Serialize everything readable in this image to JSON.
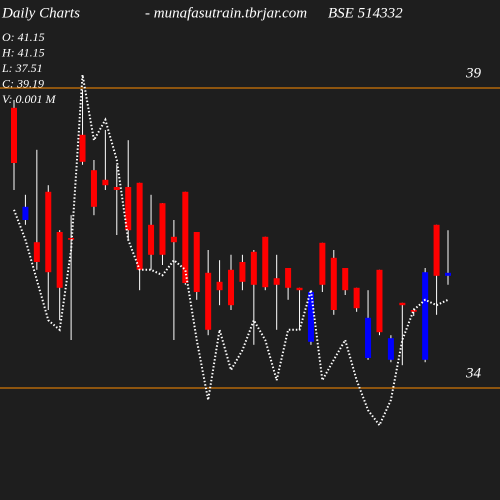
{
  "chart_data": {
    "type": "candlestick",
    "title": "Daily Charts",
    "subtitle": "- munafasutrain.tbrjar.com",
    "symbol": "BSE 514332",
    "info": [
      "O: 41.15",
      "H: 41.15",
      "L: 37.51",
      "C: 39.19",
      "V: 0.001 M"
    ],
    "ylim": [
      33,
      40
    ],
    "yticks": [
      39,
      34
    ],
    "tick_line_color": "#ff8c00",
    "up_color": "#0000ff",
    "down_color": "#ff0000",
    "wick_color": "#ffffff",
    "open": [
      38.67,
      36.8,
      36.43,
      37.27,
      36.6,
      36.5,
      38.22,
      37.63,
      37.47,
      37.35,
      37.35,
      37.42,
      36.72,
      37.08,
      36.52,
      37.27,
      36.6,
      35.92,
      35.77,
      35.97,
      36.1,
      36.27,
      36.52,
      35.83,
      36.0,
      35.67,
      34.77,
      36.42,
      36.17,
      36.0,
      35.67,
      34.5,
      35.97,
      34.47,
      35.42,
      35.3,
      34.47,
      36.72,
      35.87
    ],
    "high": [
      38.8,
      37.22,
      37.97,
      37.38,
      36.63,
      36.88,
      38.97,
      37.8,
      38.3,
      37.72,
      38.13,
      37.42,
      37.22,
      37.08,
      36.8,
      37.27,
      36.6,
      36.3,
      36.13,
      36.22,
      36.22,
      36.3,
      36.52,
      36.22,
      36.0,
      35.67,
      35.63,
      36.42,
      36.3,
      36.0,
      35.67,
      35.63,
      35.97,
      34.88,
      35.42,
      35.33,
      36.0,
      36.72,
      36.63
    ],
    "low": [
      37.3,
      36.72,
      35.97,
      35.3,
      35.13,
      34.8,
      37.72,
      36.88,
      37.3,
      36.55,
      36.47,
      35.63,
      35.97,
      36.05,
      34.8,
      35.72,
      35.47,
      34.88,
      35.38,
      35.3,
      35.63,
      34.72,
      35.63,
      34.97,
      35.47,
      34.97,
      34.72,
      35.6,
      35.22,
      35.55,
      35.27,
      34.47,
      34.88,
      34.43,
      34.38,
      35.2,
      34.43,
      35.22,
      35.72
    ],
    "close": [
      37.75,
      37.02,
      36.1,
      35.93,
      35.67,
      36.47,
      37.77,
      37.02,
      37.38,
      37.3,
      36.63,
      35.97,
      36.22,
      36.22,
      36.43,
      35.75,
      35.6,
      34.97,
      35.63,
      35.38,
      35.77,
      35.72,
      35.68,
      35.72,
      35.67,
      35.63,
      35.6,
      35.72,
      35.3,
      35.63,
      35.33,
      35.17,
      34.93,
      34.83,
      35.38,
      35.27,
      35.93,
      35.87,
      35.92
    ],
    "line": {
      "color": "#ffffff",
      "values": [
        36.97,
        36.47,
        35.8,
        35.13,
        34.97,
        36.3,
        39.22,
        38.13,
        38.47,
        37.8,
        36.47,
        35.97,
        35.97,
        35.88,
        36.13,
        35.97,
        34.8,
        33.8,
        34.97,
        34.3,
        34.63,
        35.13,
        34.8,
        34.13,
        34.97,
        34.97,
        35.63,
        34.13,
        34.47,
        34.8,
        34.13,
        33.63,
        33.38,
        33.8,
        34.8,
        35.3,
        35.47,
        35.38,
        35.47
      ]
    }
  }
}
